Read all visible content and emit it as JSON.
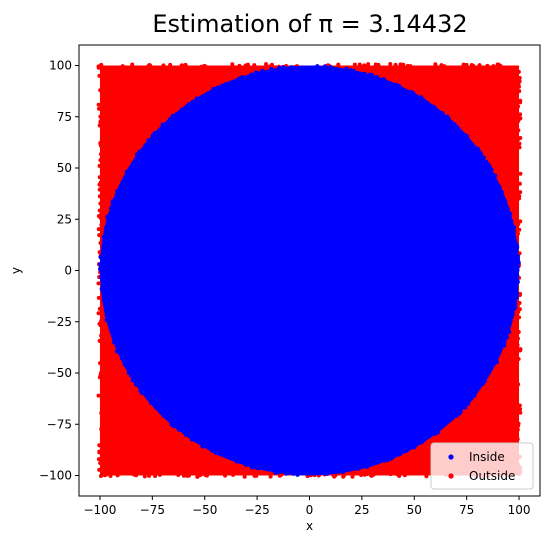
{
  "chart_data": {
    "type": "scatter",
    "title": "Estimation of π = 3.14432",
    "xlabel": "x",
    "ylabel": "y",
    "xlim": [
      -110,
      110
    ],
    "ylim": [
      -110,
      110
    ],
    "x_ticks": [
      -100,
      -75,
      -50,
      -25,
      0,
      25,
      50,
      75,
      100
    ],
    "y_ticks": [
      -100,
      -75,
      -50,
      -25,
      0,
      25,
      50,
      75,
      100
    ],
    "x_tick_labels": [
      "−100",
      "−75",
      "−50",
      "−25",
      "0",
      "25",
      "50",
      "75",
      "100"
    ],
    "y_tick_labels": [
      "−100",
      "−75",
      "−50",
      "−25",
      "0",
      "25",
      "50",
      "75",
      "100"
    ],
    "grid": false,
    "legend_position": "lower-right",
    "series": [
      {
        "name": "Inside",
        "color": "#0000ff",
        "marker": "dot",
        "region": "disk",
        "center": [
          0,
          0
        ],
        "radius": 100
      },
      {
        "name": "Outside",
        "color": "#ff0000",
        "marker": "dot",
        "region": "square-minus-disk",
        "x_range": [
          -100,
          100
        ],
        "y_range": [
          -100,
          100
        ]
      }
    ]
  }
}
